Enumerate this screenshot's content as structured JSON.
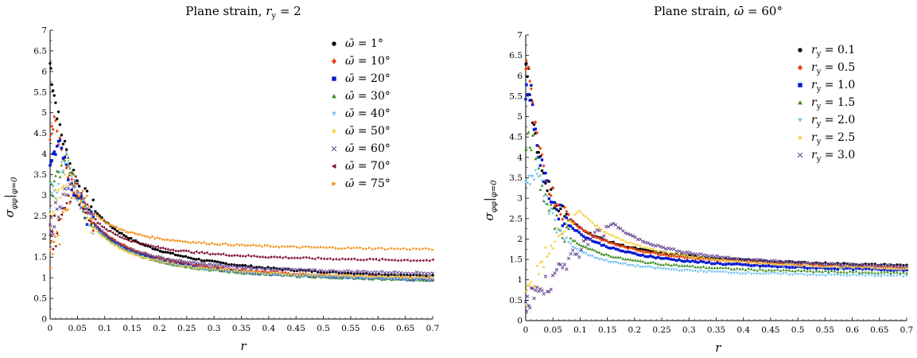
{
  "chart_data": [
    {
      "type": "scatter",
      "title": "Plane strain, r_y = 2",
      "title_parts": [
        "Plane strain, ",
        "r",
        "y",
        " = 2"
      ],
      "xlabel": "r",
      "ylabel": "σ_φφ|_φ=0",
      "ylabel_parts": [
        "σ",
        "φφ",
        "φ=0"
      ],
      "xlim": [
        0,
        0.7
      ],
      "ylim": [
        0,
        7
      ],
      "xticks": [
        "0",
        "0.05",
        "0.1",
        "0.15",
        "0.2",
        "0.25",
        "0.3",
        "0.35",
        "0.4",
        "0.45",
        "0.5",
        "0.55",
        "0.6",
        "0.65",
        "0.7"
      ],
      "yticks": [
        "0",
        "0.5",
        "1",
        "1.5",
        "2",
        "2.5",
        "3",
        "3.5",
        "4",
        "4.5",
        "5",
        "5.5",
        "6",
        "6.5",
        "7"
      ],
      "legend_position": "top-right",
      "series": [
        {
          "name": "ω̄ = 1°",
          "legend_sym": "ω̄",
          "legend_val": " = 1°",
          "marker": "circle",
          "color": "#000000",
          "peak_r": 0.0,
          "peak_v": 6.2,
          "tail_v": 0.82,
          "spread": 0.2
        },
        {
          "name": "ω̄ = 10°",
          "legend_sym": "ω̄",
          "legend_val": " = 10°",
          "marker": "diamond",
          "color": "#e8400c",
          "peak_r": 0.01,
          "peak_v": 4.8,
          "tail_v": 0.82,
          "spread": 0.2
        },
        {
          "name": "ω̄ = 20°",
          "legend_sym": "ω̄",
          "legend_val": " = 20°",
          "marker": "square",
          "color": "#0019d1",
          "peak_r": 0.02,
          "peak_v": 4.4,
          "tail_v": 0.8,
          "spread": 0.2
        },
        {
          "name": "ω̄ = 30°",
          "legend_sym": "ω̄",
          "legend_val": " = 30°",
          "marker": "triangle-up",
          "color": "#3f8f24",
          "peak_r": 0.03,
          "peak_v": 4.0,
          "tail_v": 0.81,
          "spread": 0.2
        },
        {
          "name": "ω̄ = 40°",
          "legend_sym": "ω̄",
          "legend_val": " = 40°",
          "marker": "triangle-down",
          "color": "#79c5ef",
          "peak_r": 0.03,
          "peak_v": 3.9,
          "tail_v": 0.83,
          "spread": 0.2
        },
        {
          "name": "ω̄ = 50°",
          "legend_sym": "ω̄",
          "legend_val": " = 50°",
          "marker": "star",
          "color": "#f7ce3a",
          "peak_r": 0.035,
          "peak_v": 3.6,
          "tail_v": 0.88,
          "spread": 0.22
        },
        {
          "name": "ω̄ = 60°",
          "legend_sym": "ω̄",
          "legend_val": " = 60°",
          "marker": "cross",
          "color": "#5b3a8a",
          "peak_r": 0.04,
          "peak_v": 3.5,
          "tail_v": 1.0,
          "spread": 0.22
        },
        {
          "name": "ω̄ = 70°",
          "legend_sym": "ω̄",
          "legend_val": " = 70°",
          "marker": "triangle-left",
          "color": "#7b0d2a",
          "peak_r": 0.045,
          "peak_v": 3.3,
          "tail_v": 1.33,
          "spread": 0.25
        },
        {
          "name": "ω̄ = 75°",
          "legend_sym": "ω̄",
          "legend_val": " = 75°",
          "marker": "triangle-right",
          "color": "#f2931e",
          "peak_r": 0.05,
          "peak_v": 3.2,
          "tail_v": 1.62,
          "spread": 0.28
        }
      ]
    },
    {
      "type": "scatter",
      "title": "Plane strain, ω̄ = 60°",
      "title_parts": [
        "Plane strain, ",
        "ω̄",
        " = 60°"
      ],
      "xlabel": "r",
      "ylabel": "σ_φφ|_φ=0",
      "ylabel_parts": [
        "σ",
        "φφ",
        "φ=0"
      ],
      "xlim": [
        0,
        0.7
      ],
      "ylim": [
        0,
        7
      ],
      "xticks": [
        "0",
        "0.05",
        "0.1",
        "0.15",
        "0.2",
        "0.25",
        "0.3",
        "0.35",
        "0.4",
        "0.45",
        "0.5",
        "0.55",
        "0.6",
        "0.65",
        "0.7"
      ],
      "yticks": [
        "0",
        "0.5",
        "1",
        "1.5",
        "2",
        "2.5",
        "3",
        "3.5",
        "4",
        "4.5",
        "5",
        "5.5",
        "6",
        "6.5",
        "7"
      ],
      "legend_position": "top-right",
      "series": [
        {
          "name": "r_y = 0.1",
          "legend_sym": "r",
          "legend_sub": "y",
          "legend_val": " = 0.1",
          "marker": "circle",
          "color": "#000000",
          "peak_r": 0.005,
          "peak_v": 6.1,
          "tail_v": 1.18,
          "bump": 0
        },
        {
          "name": "r_y = 0.5",
          "legend_sym": "r",
          "legend_sub": "y",
          "legend_val": " = 0.5",
          "marker": "diamond",
          "color": "#e8400c",
          "peak_r": 0.005,
          "peak_v": 6.3,
          "tail_v": 1.12,
          "bump": 0
        },
        {
          "name": "r_y = 1.0",
          "legend_sym": "r",
          "legend_sub": "y",
          "legend_val": " = 1.0",
          "marker": "square",
          "color": "#0019d1",
          "peak_r": 0.01,
          "peak_v": 5.6,
          "tail_v": 1.08,
          "bump": 0
        },
        {
          "name": "r_y = 1.5",
          "legend_sym": "r",
          "legend_sub": "y",
          "legend_val": " = 1.5",
          "marker": "triangle-up",
          "color": "#3f8f24",
          "peak_r": 0.015,
          "peak_v": 4.4,
          "tail_v": 1.05,
          "bump": 0
        },
        {
          "name": "r_y = 2.0",
          "legend_sym": "r",
          "legend_sub": "y",
          "legend_val": " = 2.0",
          "marker": "triangle-down",
          "color": "#79c5ef",
          "peak_r": 0.03,
          "peak_v": 3.5,
          "tail_v": 1.0,
          "bump": 0
        },
        {
          "name": "r_y = 2.5",
          "legend_sym": "r",
          "legend_sub": "y",
          "legend_val": " = 2.5",
          "marker": "star",
          "color": "#f7ce3a",
          "peak_r": 0.1,
          "peak_v": 2.7,
          "tail_v": 1.08,
          "bump": 1
        },
        {
          "name": "r_y = 3.0",
          "legend_sym": "r",
          "legend_sub": "y",
          "legend_val": " = 3.0",
          "marker": "cross",
          "color": "#5b3a8a",
          "peak_r": 0.16,
          "peak_v": 2.4,
          "tail_v": 1.18,
          "bump": 2
        }
      ]
    }
  ]
}
